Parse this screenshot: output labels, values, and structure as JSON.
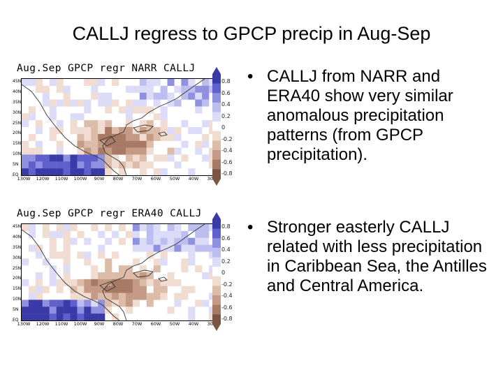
{
  "slide": {
    "title": "CALLJ regress to GPCP precip in Aug-Sep",
    "bullets": [
      "CALLJ from NARR and ERA40 show very similar anomalous precipitation patterns (from GPCP precipitation).",
      "Stronger easterly CALLJ related with less precipitation in Caribbean Sea, the Antilles and Central America."
    ],
    "bullet_symbol": "•"
  },
  "panels": [
    {
      "title": "Aug.Sep GPCP regr NARR CALLJ",
      "colorbar_labels": [
        "0.8",
        "0.6",
        "0.4",
        "0.2",
        "0",
        "-0.2",
        "-0.4",
        "-0.6",
        "-0.8"
      ]
    },
    {
      "title": "Aug.Sep GPCP regr ERA40 CALLJ",
      "colorbar_labels": [
        "0.8",
        "0.6",
        "0.4",
        "0.2",
        "0",
        "-0.2",
        "-0.4",
        "-0.6",
        "-0.8"
      ]
    }
  ],
  "map_axes": {
    "lat_labels": [
      "45N",
      "40N",
      "35N",
      "30N",
      "25N",
      "20N",
      "15N",
      "10N",
      "5N",
      "EQ"
    ],
    "lon_labels": [
      "130W",
      "120W",
      "110W",
      "100W",
      "90W",
      "80W",
      "70W",
      "60W",
      "50W",
      "40W",
      "30W"
    ]
  },
  "palette": {
    "positive": [
      "#ffffff",
      "#dcdcf8",
      "#bdbdf0",
      "#9090e0",
      "#6060cc",
      "#3a3aa8"
    ],
    "negative": [
      "#ffffff",
      "#f0dcd0",
      "#dcbca8",
      "#c49a84",
      "#a87a66",
      "#7a5444"
    ]
  }
}
